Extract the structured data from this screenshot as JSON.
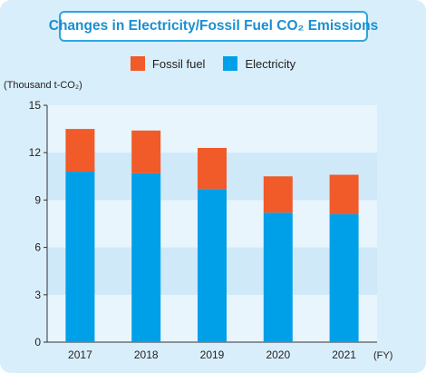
{
  "colors": {
    "panel_bg": "#d9eefb",
    "plot_band_light": "#e8f5fd",
    "plot_band_dark": "#cfe9f9",
    "fossil_fuel": "#f15a29",
    "electricity": "#00a0e9",
    "title_border": "#29a8e0",
    "title_text": "#1a8fd0"
  },
  "chart_data": {
    "type": "bar",
    "stacked": true,
    "title": "Changes in Electricity/Fossil Fuel CO₂ Emissions",
    "ylabel": "(Thousand t-CO₂)",
    "xunit": "(FY)",
    "categories": [
      "2017",
      "2018",
      "2019",
      "2020",
      "2021"
    ],
    "series": [
      {
        "name": "Electricity",
        "color": "#00a0e9",
        "values": [
          10.8,
          10.7,
          9.7,
          8.2,
          8.1
        ]
      },
      {
        "name": "Fossil fuel",
        "color": "#f15a29",
        "values": [
          2.7,
          2.7,
          2.6,
          2.3,
          2.5
        ]
      }
    ],
    "ylim": [
      0,
      15
    ],
    "yticks": [
      "0",
      "3",
      "6",
      "9",
      "12",
      "15"
    ],
    "legend_position": "top-center",
    "grid": false
  },
  "legend": [
    {
      "label": "Fossil fuel",
      "color": "#f15a29"
    },
    {
      "label": "Electricity",
      "color": "#00a0e9"
    }
  ]
}
